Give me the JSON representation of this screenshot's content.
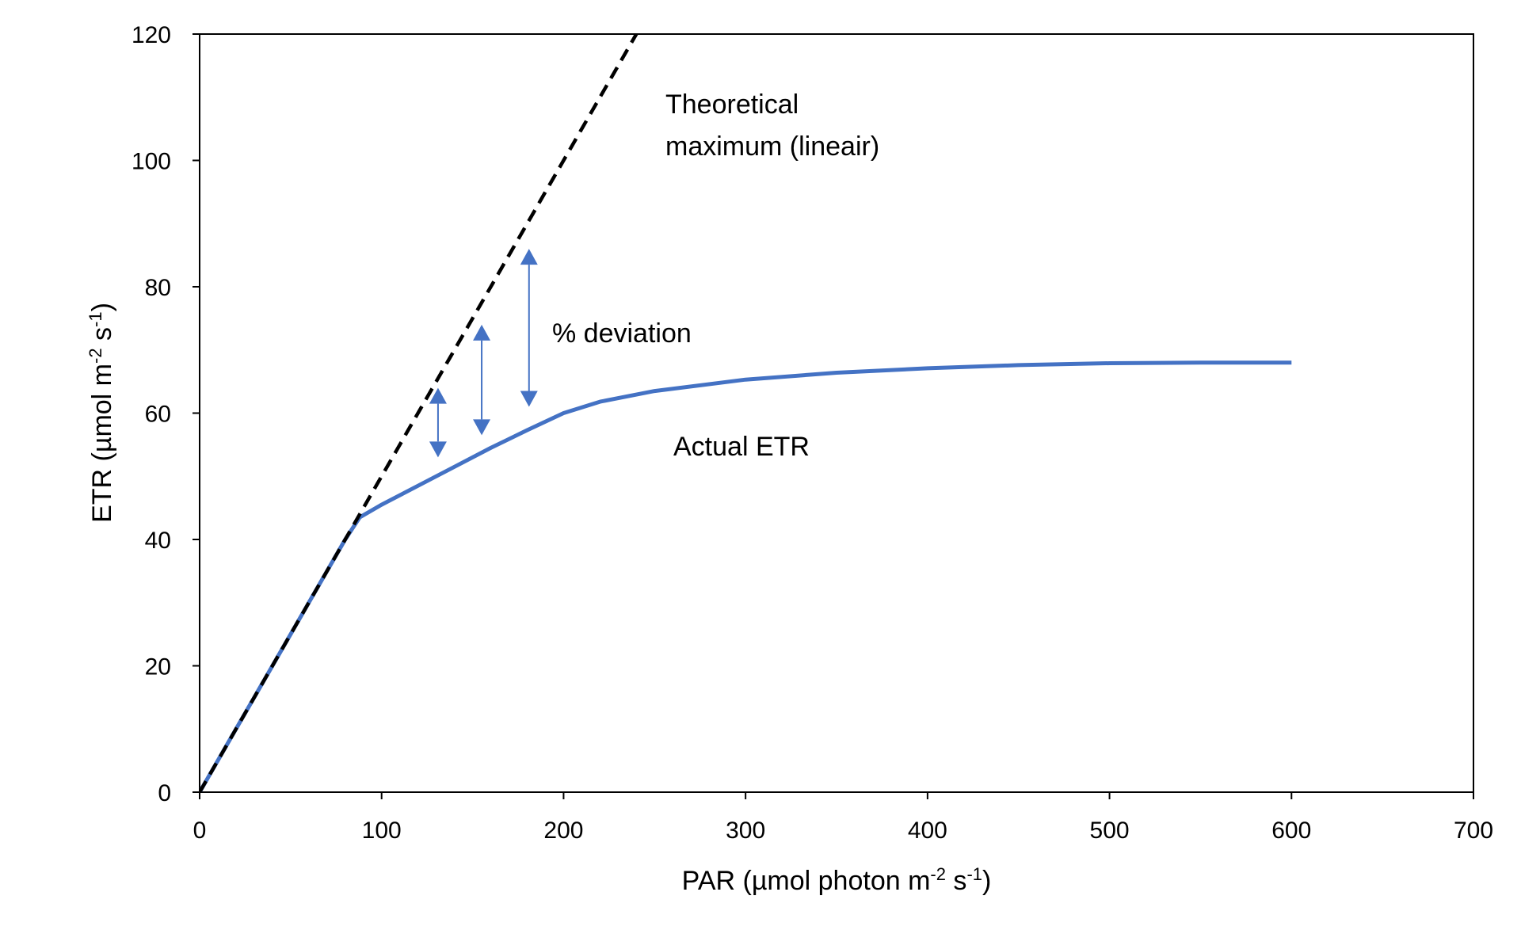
{
  "chart_data": {
    "type": "line",
    "xlim": [
      0,
      700
    ],
    "ylim": [
      0,
      120
    ],
    "x_ticks": [
      0,
      100,
      200,
      300,
      400,
      500,
      600,
      700
    ],
    "y_ticks": [
      0,
      20,
      40,
      60,
      80,
      100,
      120
    ],
    "xlabel": {
      "main": "PAR (µmol photon m",
      "sup1": "-2",
      "mid": " s",
      "sup2": "-1",
      "end": ")"
    },
    "ylabel": {
      "main": "ETR (µmol m",
      "sup1": "-2",
      "mid": " s",
      "sup2": "-1",
      "end": ")"
    },
    "grid": false,
    "series": [
      {
        "role": "theoretical",
        "style": "dashed",
        "color": "#000000",
        "x": [
          0,
          250
        ],
        "y": [
          0,
          125
        ]
      },
      {
        "role": "actual",
        "style": "solid",
        "color": "#4472C4",
        "x": [
          0,
          20,
          40,
          60,
          80,
          88,
          100,
          120,
          140,
          160,
          180,
          200,
          220,
          250,
          300,
          350,
          400,
          450,
          500,
          550,
          600
        ],
        "y": [
          0,
          10,
          20,
          30,
          40,
          43.5,
          45.5,
          48.5,
          51.5,
          54.5,
          57.3,
          60,
          61.8,
          63.5,
          65.3,
          66.4,
          67.1,
          67.6,
          67.9,
          68.0,
          68.0
        ]
      }
    ],
    "deviation_arrows": [
      {
        "x": 131,
        "y_from": 53,
        "y_to": 64
      },
      {
        "x": 155,
        "y_from": 56.5,
        "y_to": 74
      },
      {
        "x": 181,
        "y_from": 61,
        "y_to": 86
      }
    ],
    "annotations": [
      {
        "id": "theoretical",
        "lines": [
          "Theoretical",
          "maximum (lineair)"
        ]
      },
      {
        "id": "deviation",
        "lines": [
          "% deviation"
        ]
      },
      {
        "id": "actual",
        "lines": [
          "Actual ETR"
        ]
      }
    ],
    "colors": {
      "actual": "#4472C4",
      "theoretical": "#000000",
      "arrow": "#4472C4",
      "axes": "#000000"
    }
  }
}
